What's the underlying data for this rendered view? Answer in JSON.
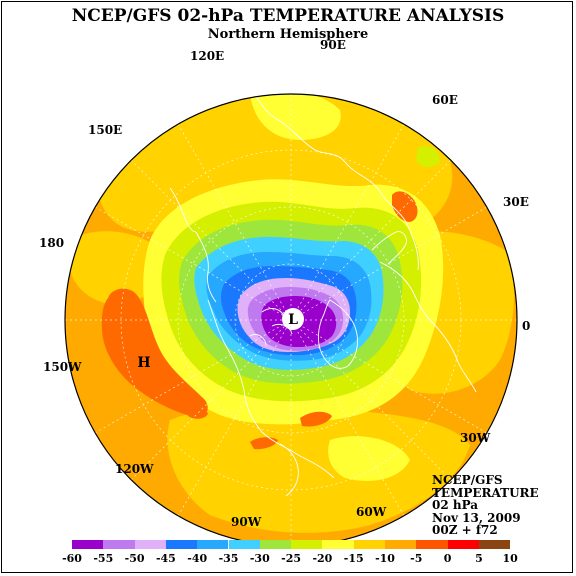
{
  "title": "NCEP/GFS 02-hPa TEMPERATURE ANALYSIS",
  "subtitle": "Northern Hemisphere",
  "longitudes": {
    "e90": "90E",
    "e120": "120E",
    "e60": "60E",
    "e150": "150E",
    "e30": "30E",
    "d180": "180",
    "d0": "0",
    "w150": "150W",
    "w30": "30W",
    "w120": "120W",
    "w60": "60W",
    "w90": "90W"
  },
  "markers": {
    "low": "L",
    "high": "H"
  },
  "info": {
    "line1": "NCEP/GFS",
    "line2": "TEMPERATURE",
    "line3": "02 hPa",
    "line4": "Nov 13, 2009",
    "line5": "00Z + f72"
  },
  "legend": {
    "labels": [
      "-60",
      "-55",
      "-50",
      "-45",
      "-40",
      "-35",
      "-30",
      "-25",
      "-20",
      "-15",
      "-10",
      "-5",
      "0",
      "5",
      "10"
    ],
    "colors": [
      "#9900cc",
      "#c07af0",
      "#e0b0f8",
      "#1a78ff",
      "#26a8ff",
      "#40d0ff",
      "#9ee63c",
      "#d4f000",
      "#ffff33",
      "#ffd200",
      "#ffaa00",
      "#ff5500",
      "#ff0000",
      "#8b4513",
      "#888888"
    ]
  },
  "colors": {
    "base": "#ffaa00",
    "warm": "#ff6a00",
    "light": "#ffd200",
    "yellow": "#ffff33",
    "lime": "#d4f000",
    "green": "#9ee63c",
    "cyan": "#40d0ff",
    "sky": "#26a8ff",
    "blue": "#1a78ff",
    "lavender": "#e0b0f8",
    "violet": "#c07af0",
    "purple": "#9900cc",
    "coast": "#ffffff",
    "white": "#ffffff"
  }
}
